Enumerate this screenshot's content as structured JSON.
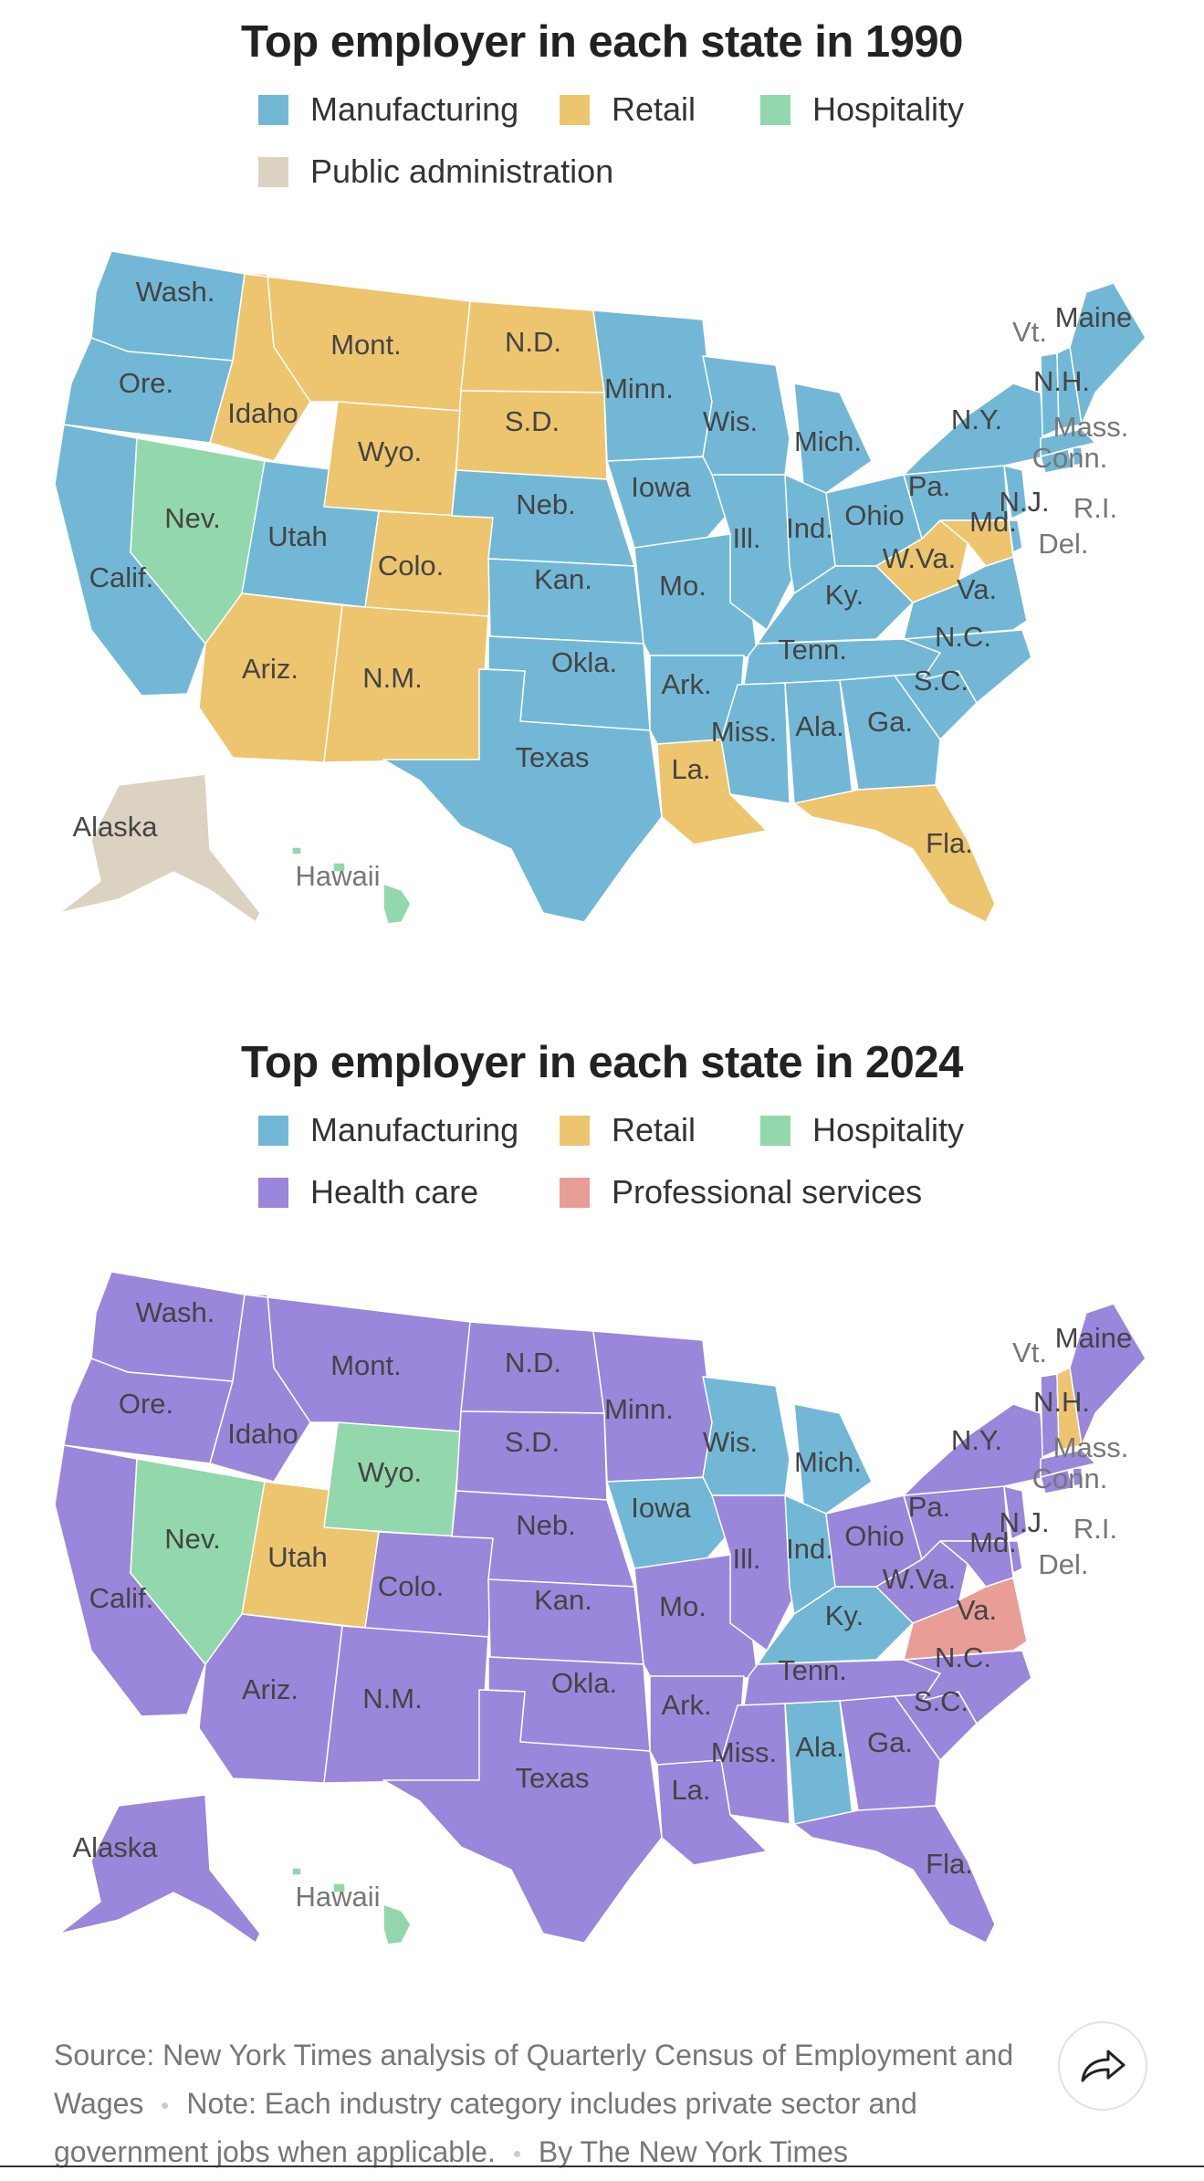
{
  "colors": {
    "Manufacturing": "#72b8d6",
    "Retail": "#edc56f",
    "Hospitality": "#93d8ac",
    "Public administration": "#dcd2c2",
    "Health care": "#9a86da",
    "Professional services": "#e89e96"
  },
  "maps": [
    {
      "title": "Top employer in each state in 1990",
      "legend": [
        "Manufacturing",
        "Retail",
        "Hospitality",
        "Public administration"
      ],
      "states": {
        "Wash.": "Manufacturing",
        "Ore.": "Manufacturing",
        "Calif.": "Manufacturing",
        "Idaho": "Retail",
        "Nev.": "Hospitality",
        "Utah": "Manufacturing",
        "Ariz.": "Retail",
        "Mont.": "Retail",
        "Wyo.": "Retail",
        "Colo.": "Retail",
        "N.M.": "Retail",
        "N.D.": "Retail",
        "S.D.": "Retail",
        "Neb.": "Manufacturing",
        "Kan.": "Manufacturing",
        "Okla.": "Manufacturing",
        "Texas": "Manufacturing",
        "Minn.": "Manufacturing",
        "Iowa": "Manufacturing",
        "Mo.": "Manufacturing",
        "Ark.": "Manufacturing",
        "La.": "Retail",
        "Wis.": "Manufacturing",
        "Ill.": "Manufacturing",
        "Mich.": "Manufacturing",
        "Ind.": "Manufacturing",
        "Ohio": "Manufacturing",
        "Ky.": "Manufacturing",
        "Tenn.": "Manufacturing",
        "Miss.": "Manufacturing",
        "Ala.": "Manufacturing",
        "Ga.": "Manufacturing",
        "Fla.": "Retail",
        "S.C.": "Manufacturing",
        "N.C.": "Manufacturing",
        "Va.": "Manufacturing",
        "W.Va.": "Retail",
        "Pa.": "Manufacturing",
        "N.Y.": "Manufacturing",
        "Md.": "Retail",
        "Del.": "Manufacturing",
        "N.J.": "Manufacturing",
        "Conn.": "Manufacturing",
        "R.I.": "Manufacturing",
        "Mass.": "Manufacturing",
        "Vt.": "Manufacturing",
        "N.H.": "Manufacturing",
        "Maine": "Manufacturing",
        "Alaska": "Public administration",
        "Hawaii": "Hospitality"
      }
    },
    {
      "title": "Top employer in each state in 2024",
      "legend": [
        "Manufacturing",
        "Retail",
        "Hospitality",
        "Health care",
        "Professional services"
      ],
      "states": {
        "Wash.": "Health care",
        "Ore.": "Health care",
        "Calif.": "Health care",
        "Idaho": "Health care",
        "Nev.": "Hospitality",
        "Utah": "Retail",
        "Ariz.": "Health care",
        "Mont.": "Health care",
        "Wyo.": "Hospitality",
        "Colo.": "Health care",
        "N.M.": "Health care",
        "N.D.": "Health care",
        "S.D.": "Health care",
        "Neb.": "Health care",
        "Kan.": "Health care",
        "Okla.": "Health care",
        "Texas": "Health care",
        "Minn.": "Health care",
        "Iowa": "Manufacturing",
        "Mo.": "Health care",
        "Ark.": "Health care",
        "La.": "Health care",
        "Wis.": "Manufacturing",
        "Ill.": "Health care",
        "Mich.": "Manufacturing",
        "Ind.": "Manufacturing",
        "Ohio": "Health care",
        "Ky.": "Manufacturing",
        "Tenn.": "Health care",
        "Miss.": "Health care",
        "Ala.": "Manufacturing",
        "Ga.": "Health care",
        "Fla.": "Health care",
        "S.C.": "Health care",
        "N.C.": "Health care",
        "Va.": "Professional services",
        "W.Va.": "Health care",
        "Pa.": "Health care",
        "N.Y.": "Health care",
        "Md.": "Health care",
        "Del.": "Health care",
        "N.J.": "Health care",
        "Conn.": "Health care",
        "R.I.": "Health care",
        "Mass.": "Health care",
        "Vt.": "Health care",
        "N.H.": "Retail",
        "Maine": "Health care",
        "Alaska": "Health care",
        "Hawaii": "Hospitality"
      }
    }
  ],
  "footer": {
    "source": "Source: New York Times analysis of Quarterly Census of Employment and Wages",
    "note": "Note: Each industry category includes private sector and government jobs when applicable.",
    "byline": "By The New York Times"
  },
  "share_icon": "share-arrow-icon"
}
